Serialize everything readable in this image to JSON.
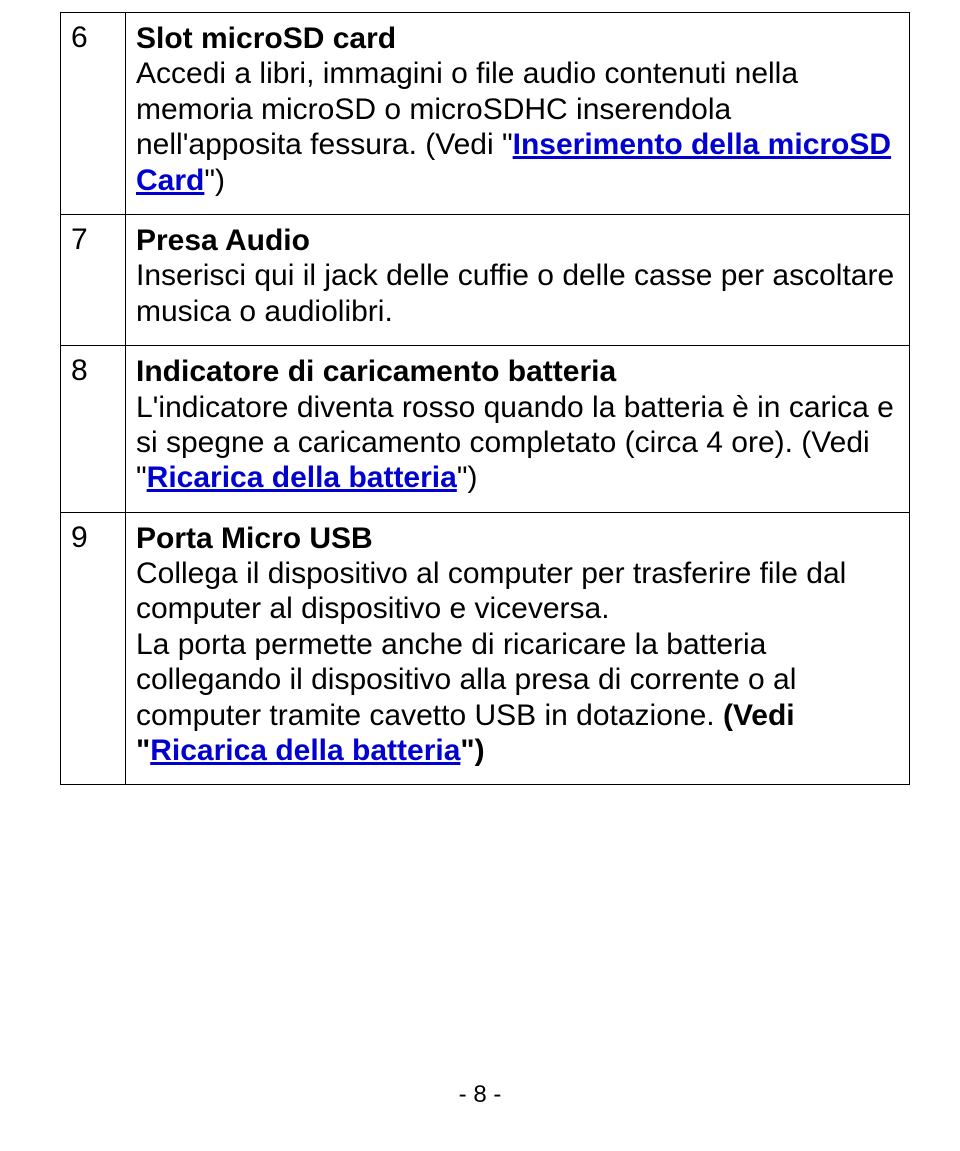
{
  "rows": [
    {
      "num": "6",
      "title": "Slot microSD card",
      "body_before": "Accedi a libri, immagini o file audio contenuti nella memoria microSD o microSDHC inserendola nell'apposita fessura. (Vedi \"",
      "link": "Inserimento della microSD Card",
      "body_after": "\")"
    },
    {
      "num": "7",
      "title": "Presa Audio",
      "body_before": "Inserisci qui il jack delle cuffie o delle casse per ascoltare musica o audiolibri.",
      "link": "",
      "body_after": ""
    },
    {
      "num": "8",
      "title": "Indicatore di caricamento batteria",
      "body_before": "L'indicatore diventa rosso quando la batteria è in carica e si spegne a caricamento completato (circa 4 ore). (Vedi \"",
      "link": "Ricarica della batteria",
      "body_after": "\")"
    },
    {
      "num": "9",
      "title": "Porta Micro USB",
      "body_before": "Collega il dispositivo al computer per trasferire file dal computer al dispositivo e viceversa.",
      "para2_before": "La porta permette anche di ricaricare la batteria collegando il dispositivo alla presa di corrente o al computer tramite cavetto USB in dotazione. ",
      "bold_vedi": "(Vedi \"",
      "link": "Ricarica della batteria",
      "body_after": "\")"
    }
  ],
  "footer": "- 8 -"
}
